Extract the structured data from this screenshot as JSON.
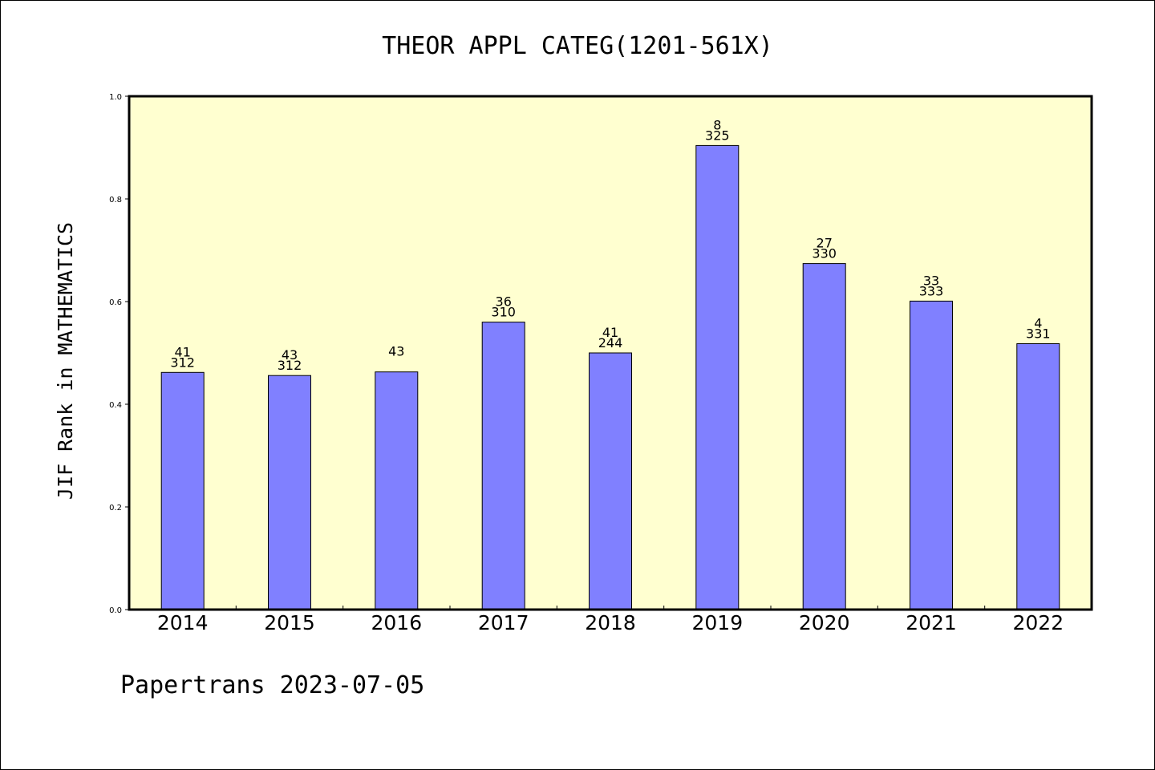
{
  "chart_data": {
    "type": "bar",
    "title": "THEOR APPL CATEG(1201-561X)",
    "xlabel": "",
    "ylabel": "JIF Rank in MATHEMATICS",
    "ylim": [
      0,
      1.0
    ],
    "yticks": [
      "0.0",
      "0.2",
      "0.4",
      "0.6",
      "0.8",
      "1.0"
    ],
    "categories": [
      "2014",
      "2015",
      "2016",
      "2017",
      "2018",
      "2019",
      "2020",
      "2021",
      "2022"
    ],
    "values": [
      0.462,
      0.456,
      0.463,
      0.56,
      0.5,
      0.904,
      0.674,
      0.601,
      0.518
    ],
    "labels_top": [
      "41",
      "43",
      "43",
      "36",
      "41",
      "8",
      "27",
      "33",
      "4"
    ],
    "labels_bottom": [
      "312",
      "312",
      "",
      "310",
      "244",
      "325",
      "330",
      "333",
      "331"
    ],
    "grid": false,
    "colors": {
      "plot_background": "#ffffd0",
      "bar_fill": "#8080ff",
      "bar_stroke": "#000000"
    }
  },
  "footer": "Papertrans 2023-07-05"
}
